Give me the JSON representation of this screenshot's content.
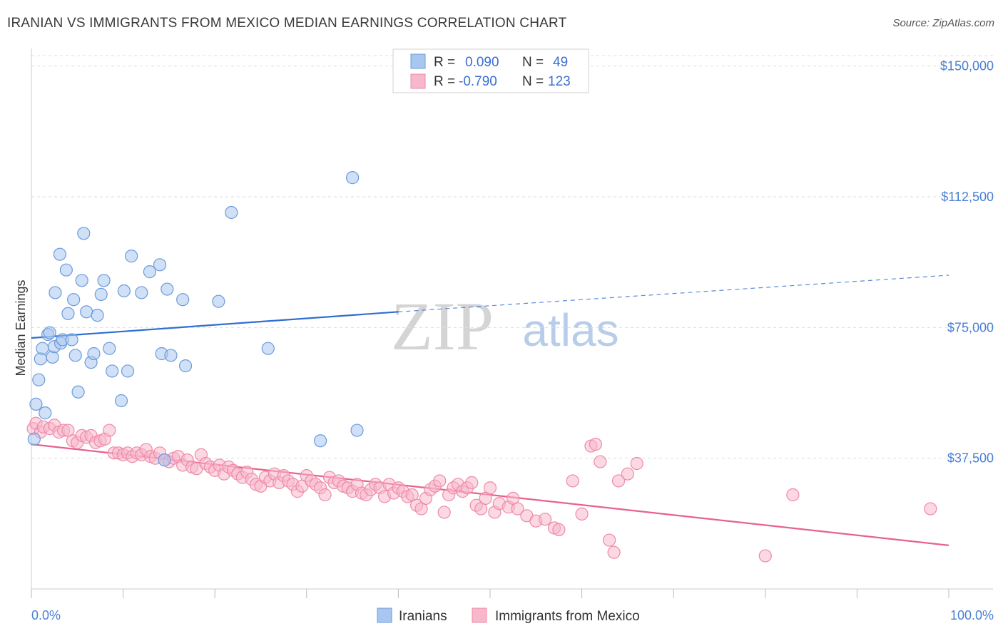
{
  "title": "IRANIAN VS IMMIGRANTS FROM MEXICO MEDIAN EARNINGS CORRELATION CHART",
  "source": "Source: ZipAtlas.com",
  "watermark": {
    "zip": "ZIP",
    "atlas": "atlas"
  },
  "colors": {
    "blue_fill": "#a9c7ee",
    "blue_stroke": "#6b9bdc",
    "blue_line": "#2f6fd0",
    "pink_fill": "#f7b8cb",
    "pink_stroke": "#ee8aa9",
    "pink_line": "#e8608f",
    "tick_text": "#4a7fd4",
    "grid": "#dddddd"
  },
  "legend": {
    "rows": [
      {
        "r_label": "R =",
        "r_value": "0.090",
        "n_label": "N =",
        "n_value": "49",
        "color": "blue"
      },
      {
        "r_label": "R =",
        "r_value": "-0.790",
        "n_label": "N =",
        "n_value": "123",
        "color": "pink"
      }
    ]
  },
  "bottom_legend": [
    "Iranians",
    "Immigrants from Mexico"
  ],
  "chart_data": {
    "type": "scatter",
    "title": "IRANIAN VS IMMIGRANTS FROM MEXICO MEDIAN EARNINGS CORRELATION CHART",
    "xlabel": "",
    "ylabel": "Median Earnings",
    "xlim": [
      0,
      100
    ],
    "ylim": [
      0,
      153000
    ],
    "x_tick_labels": [
      "0.0%",
      "100.0%"
    ],
    "y_ticks": [
      37500,
      75000,
      112500,
      150000
    ],
    "y_tick_labels": [
      "$37,500",
      "$75,000",
      "$112,500",
      "$150,000"
    ],
    "grid": true,
    "legend_placement": "top-center",
    "series": [
      {
        "name": "Iranians",
        "color": "blue",
        "trend": {
          "x0": 0,
          "y0": 72000,
          "x_solid_end": 40,
          "y_solid_end": 79500,
          "x1": 100,
          "y1": 90000
        },
        "points": [
          [
            0.3,
            43000
          ],
          [
            0.5,
            53000
          ],
          [
            0.8,
            60000
          ],
          [
            1.0,
            66000
          ],
          [
            1.2,
            69000
          ],
          [
            1.5,
            50500
          ],
          [
            1.8,
            73000
          ],
          [
            2.0,
            73500
          ],
          [
            2.3,
            66500
          ],
          [
            2.5,
            69500
          ],
          [
            2.6,
            85000
          ],
          [
            3.1,
            96000
          ],
          [
            3.2,
            70500
          ],
          [
            3.4,
            71500
          ],
          [
            3.8,
            91500
          ],
          [
            4.0,
            79000
          ],
          [
            4.4,
            71500
          ],
          [
            4.6,
            83000
          ],
          [
            4.8,
            67000
          ],
          [
            5.1,
            56500
          ],
          [
            5.5,
            88500
          ],
          [
            5.7,
            102000
          ],
          [
            6.0,
            79500
          ],
          [
            6.5,
            65000
          ],
          [
            6.8,
            67500
          ],
          [
            7.2,
            78500
          ],
          [
            7.6,
            84500
          ],
          [
            7.9,
            88500
          ],
          [
            8.5,
            69000
          ],
          [
            8.8,
            62500
          ],
          [
            9.8,
            54000
          ],
          [
            10.1,
            85500
          ],
          [
            10.5,
            62500
          ],
          [
            10.9,
            95500
          ],
          [
            12.0,
            85000
          ],
          [
            12.9,
            91000
          ],
          [
            14.0,
            93000
          ],
          [
            14.2,
            67500
          ],
          [
            14.8,
            86000
          ],
          [
            15.2,
            67000
          ],
          [
            16.5,
            83000
          ],
          [
            16.8,
            64000
          ],
          [
            20.4,
            82500
          ],
          [
            21.8,
            108000
          ],
          [
            25.8,
            69000
          ],
          [
            31.5,
            42500
          ],
          [
            35.5,
            45500
          ],
          [
            35.0,
            118000
          ],
          [
            14.5,
            37000
          ]
        ]
      },
      {
        "name": "Immigrants from Mexico",
        "color": "pink",
        "trend": {
          "x0": 0,
          "y0": 41500,
          "x1": 100,
          "y1": 12500
        },
        "points": [
          [
            0.2,
            46000
          ],
          [
            0.5,
            47500
          ],
          [
            1.0,
            45000
          ],
          [
            1.3,
            46500
          ],
          [
            2.0,
            46000
          ],
          [
            2.5,
            47000
          ],
          [
            3.0,
            45000
          ],
          [
            3.5,
            45500
          ],
          [
            4.0,
            45500
          ],
          [
            4.5,
            42500
          ],
          [
            5.0,
            42000
          ],
          [
            5.5,
            44000
          ],
          [
            6.0,
            43500
          ],
          [
            6.5,
            44000
          ],
          [
            7.0,
            42000
          ],
          [
            7.5,
            42500
          ],
          [
            8.0,
            43000
          ],
          [
            8.5,
            45500
          ],
          [
            9.0,
            39000
          ],
          [
            9.5,
            39000
          ],
          [
            10.0,
            38500
          ],
          [
            10.5,
            39000
          ],
          [
            11.0,
            38000
          ],
          [
            11.5,
            39000
          ],
          [
            12.0,
            38500
          ],
          [
            12.5,
            40000
          ],
          [
            13.0,
            38000
          ],
          [
            13.5,
            37500
          ],
          [
            14.0,
            39000
          ],
          [
            14.5,
            37000
          ],
          [
            15.0,
            36500
          ],
          [
            15.5,
            37500
          ],
          [
            16.0,
            38000
          ],
          [
            16.5,
            35500
          ],
          [
            17.0,
            37000
          ],
          [
            17.5,
            35000
          ],
          [
            18.0,
            34500
          ],
          [
            18.5,
            38500
          ],
          [
            19.0,
            36000
          ],
          [
            19.5,
            35000
          ],
          [
            20.0,
            34000
          ],
          [
            20.5,
            35500
          ],
          [
            21.0,
            33000
          ],
          [
            21.5,
            35000
          ],
          [
            22.0,
            34000
          ],
          [
            22.5,
            33000
          ],
          [
            23.0,
            32000
          ],
          [
            23.5,
            33500
          ],
          [
            24.0,
            31500
          ],
          [
            24.5,
            30000
          ],
          [
            25.0,
            29500
          ],
          [
            25.5,
            32000
          ],
          [
            26.0,
            31000
          ],
          [
            26.5,
            33000
          ],
          [
            27.0,
            30500
          ],
          [
            27.5,
            32500
          ],
          [
            28.0,
            31000
          ],
          [
            28.5,
            30000
          ],
          [
            29.0,
            28000
          ],
          [
            29.5,
            29500
          ],
          [
            30.0,
            32500
          ],
          [
            30.5,
            31000
          ],
          [
            31.0,
            30000
          ],
          [
            31.5,
            29000
          ],
          [
            32.0,
            27000
          ],
          [
            32.5,
            32000
          ],
          [
            33.0,
            30500
          ],
          [
            33.5,
            31000
          ],
          [
            34.0,
            29500
          ],
          [
            34.5,
            29000
          ],
          [
            35.0,
            28000
          ],
          [
            35.5,
            30000
          ],
          [
            36.0,
            27500
          ],
          [
            36.5,
            27000
          ],
          [
            37.0,
            28500
          ],
          [
            37.5,
            30000
          ],
          [
            38.0,
            29000
          ],
          [
            38.5,
            26500
          ],
          [
            39.0,
            30000
          ],
          [
            39.5,
            27500
          ],
          [
            40.0,
            29000
          ],
          [
            40.5,
            28000
          ],
          [
            41.0,
            26500
          ],
          [
            41.5,
            27000
          ],
          [
            42.0,
            24000
          ],
          [
            42.5,
            23000
          ],
          [
            43.0,
            26000
          ],
          [
            43.5,
            28500
          ],
          [
            44.0,
            29500
          ],
          [
            44.5,
            31000
          ],
          [
            45.0,
            22000
          ],
          [
            45.5,
            27000
          ],
          [
            46.0,
            29000
          ],
          [
            46.5,
            30000
          ],
          [
            47.0,
            28000
          ],
          [
            47.5,
            29000
          ],
          [
            48.0,
            30500
          ],
          [
            48.5,
            24000
          ],
          [
            49.0,
            23000
          ],
          [
            49.5,
            26000
          ],
          [
            50.0,
            29000
          ],
          [
            50.5,
            22000
          ],
          [
            51.0,
            24500
          ],
          [
            52.0,
            23500
          ],
          [
            52.5,
            26000
          ],
          [
            53.0,
            23000
          ],
          [
            54.0,
            21000
          ],
          [
            55.0,
            19500
          ],
          [
            56.0,
            20000
          ],
          [
            57.0,
            17500
          ],
          [
            57.5,
            17000
          ],
          [
            59.0,
            31000
          ],
          [
            60.0,
            21500
          ],
          [
            61.0,
            41000
          ],
          [
            61.5,
            41500
          ],
          [
            62.0,
            36500
          ],
          [
            63.0,
            14000
          ],
          [
            63.5,
            10500
          ],
          [
            64.0,
            31000
          ],
          [
            65.0,
            33000
          ],
          [
            66.0,
            36000
          ],
          [
            83.0,
            27000
          ],
          [
            80.0,
            9500
          ],
          [
            98.0,
            23000
          ]
        ]
      }
    ]
  }
}
